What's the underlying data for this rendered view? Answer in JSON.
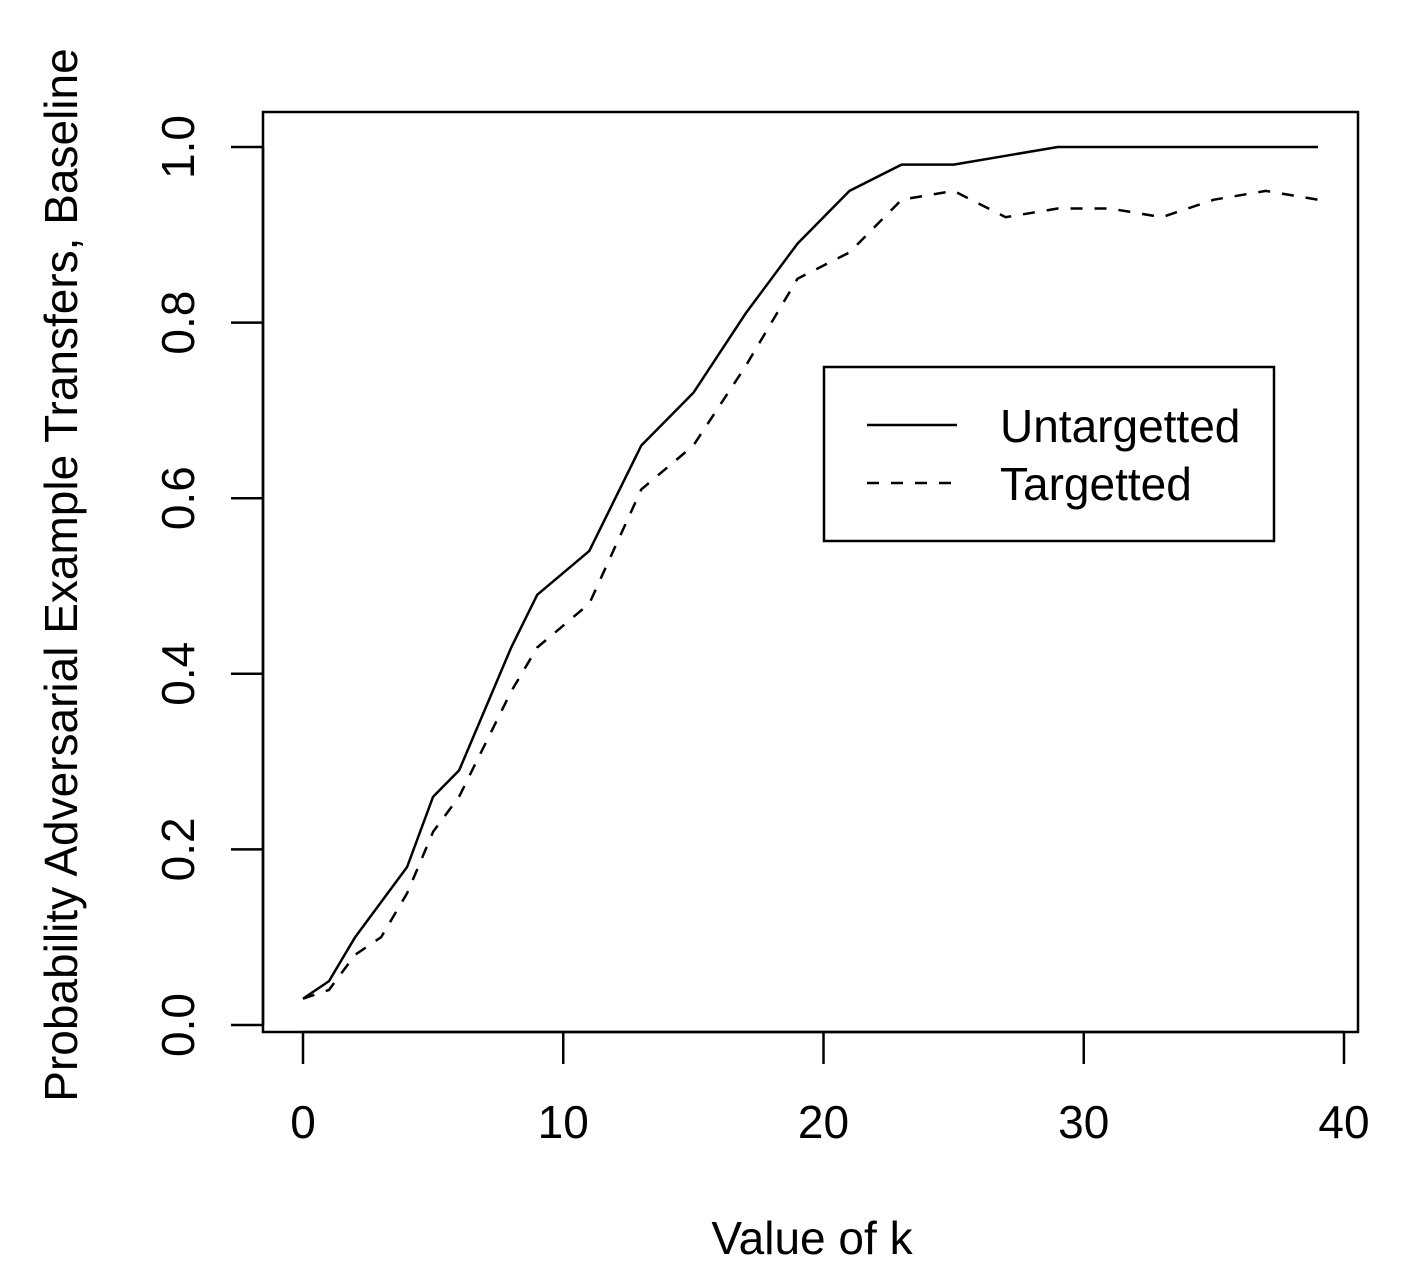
{
  "chart_data": {
    "type": "line",
    "title": "",
    "xlabel": "Value of k",
    "ylabel": "Probability Adversarial Example Transfers, Baseline",
    "xlim": [
      -1.5,
      40.5
    ],
    "ylim": [
      -0.008,
      1.04
    ],
    "xticks": [
      0,
      10,
      20,
      30,
      40
    ],
    "xtick_labels": [
      "0",
      "10",
      "20",
      "30",
      "40"
    ],
    "yticks": [
      0,
      0.2,
      0.4,
      0.6,
      0.8,
      1.0
    ],
    "ytick_labels": [
      "0.0",
      "0.2",
      "0.4",
      "0.6",
      "0.8",
      "1.0"
    ],
    "grid": false,
    "legend_position": "right",
    "x": [
      0,
      1,
      2,
      3,
      4,
      5,
      6,
      7,
      8,
      9,
      11,
      13,
      15,
      17,
      19,
      21,
      23,
      25,
      27,
      29,
      31,
      33,
      35,
      37,
      39
    ],
    "series": [
      {
        "name": "Untargetted",
        "style": "solid",
        "values": [
          0.03,
          0.05,
          0.1,
          0.14,
          0.18,
          0.26,
          0.29,
          0.36,
          0.43,
          0.49,
          0.54,
          0.66,
          0.72,
          0.81,
          0.89,
          0.95,
          0.98,
          0.98,
          0.99,
          1.0,
          1.0,
          1.0,
          1.0,
          1.0,
          1.0
        ]
      },
      {
        "name": "Targetted",
        "style": "dashed",
        "values": [
          0.03,
          0.04,
          0.08,
          0.1,
          0.15,
          0.22,
          0.26,
          0.32,
          0.38,
          0.43,
          0.48,
          0.61,
          0.66,
          0.75,
          0.85,
          0.88,
          0.94,
          0.95,
          0.92,
          0.93,
          0.93,
          0.92,
          0.94,
          0.95,
          0.94
        ]
      }
    ]
  }
}
